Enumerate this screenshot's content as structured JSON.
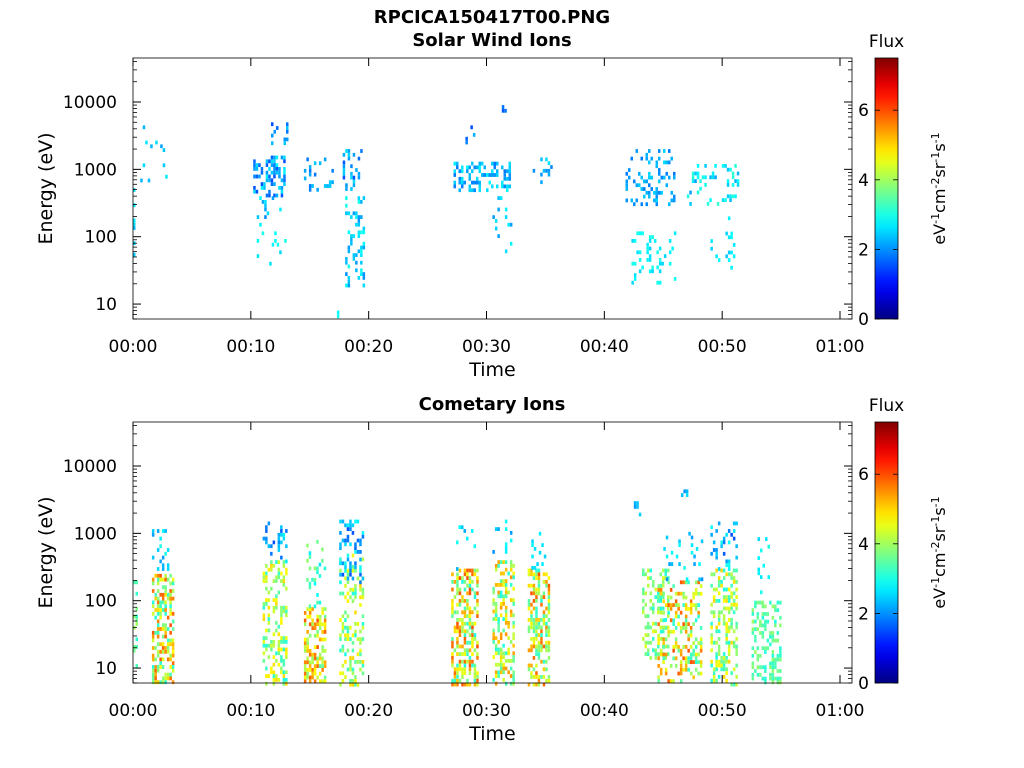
{
  "page": {
    "title_line1": "RPCICA150417T00.PNG",
    "title_line2": "Solar Wind Ions",
    "panel2_title": "Cometary Ions"
  },
  "chart_data": [
    {
      "type": "heatmap",
      "title": "Solar Wind Ions",
      "xlabel": "Time",
      "ylabel": "Energy (eV)",
      "x_unit": "minutes",
      "x_ticks": [
        "00:00",
        "00:10",
        "00:20",
        "00:30",
        "00:40",
        "00:50",
        "01:00"
      ],
      "xlim": [
        "00:00",
        "01:00"
      ],
      "y_scale": "log",
      "ylim": [
        6,
        45000
      ],
      "y_ticks": [
        "10",
        "100",
        "1000",
        "10000"
      ],
      "colorbar": {
        "title": "Flux",
        "label": "eV-1cm-2sr-1s-1",
        "ticks": [
          "0",
          "2",
          "4",
          "6"
        ],
        "range": [
          0,
          7.5
        ],
        "colormap": "jet"
      },
      "clusters": [
        {
          "t": [
            0.0,
            0.2
          ],
          "e": [
            40,
            600
          ],
          "flux": [
            2.2,
            2.8
          ],
          "density": 0.35
        },
        {
          "t": [
            0.4,
            3.0
          ],
          "e": [
            500,
            4500
          ],
          "flux": [
            2.0,
            3.0
          ],
          "density": 0.06
        },
        {
          "t": [
            10.2,
            12.9
          ],
          "e": [
            400,
            1600
          ],
          "flux": [
            1.5,
            2.8
          ],
          "density": 0.45
        },
        {
          "t": [
            10.5,
            13.0
          ],
          "e": [
            150,
            400
          ],
          "flux": [
            1.8,
            2.8
          ],
          "density": 0.1
        },
        {
          "t": [
            10.5,
            13.0
          ],
          "e": [
            40,
            120
          ],
          "flux": [
            2.5,
            3.0
          ],
          "density": 0.12
        },
        {
          "t": [
            11.5,
            13.0
          ],
          "e": [
            2500,
            5000
          ],
          "flux": [
            1.5,
            2.5
          ],
          "density": 0.12
        },
        {
          "t": [
            14.5,
            17.0
          ],
          "e": [
            500,
            1500
          ],
          "flux": [
            1.8,
            2.6
          ],
          "density": 0.15
        },
        {
          "t": [
            17.8,
            19.4
          ],
          "e": [
            500,
            2000
          ],
          "flux": [
            1.5,
            2.6
          ],
          "density": 0.3
        },
        {
          "t": [
            18.0,
            19.5
          ],
          "e": [
            20,
            400
          ],
          "flux": [
            2.0,
            3.0
          ],
          "density": 0.28
        },
        {
          "t": [
            17.3,
            17.5
          ],
          "e": [
            6,
            8
          ],
          "flux": [
            2.8,
            3.0
          ],
          "density": 0.8
        },
        {
          "t": [
            27.2,
            32.0
          ],
          "e": [
            500,
            1300
          ],
          "flux": [
            1.8,
            2.8
          ],
          "density": 0.4
        },
        {
          "t": [
            28.0,
            29.0
          ],
          "e": [
            2500,
            4500
          ],
          "flux": [
            1.5,
            2.5
          ],
          "density": 0.2
        },
        {
          "t": [
            30.5,
            32.0
          ],
          "e": [
            60,
            400
          ],
          "flux": [
            2.0,
            2.8
          ],
          "density": 0.08
        },
        {
          "t": [
            31.3,
            31.6
          ],
          "e": [
            7000,
            9000
          ],
          "flux": [
            1.6,
            2.0
          ],
          "density": 0.6
        },
        {
          "t": [
            33.5,
            35.6
          ],
          "e": [
            600,
            1500
          ],
          "flux": [
            1.8,
            2.6
          ],
          "density": 0.12
        },
        {
          "t": [
            41.8,
            46.0
          ],
          "e": [
            300,
            2000
          ],
          "flux": [
            1.8,
            2.6
          ],
          "density": 0.25
        },
        {
          "t": [
            42.3,
            46.2
          ],
          "e": [
            20,
            120
          ],
          "flux": [
            2.5,
            3.0
          ],
          "density": 0.16
        },
        {
          "t": [
            47.0,
            51.3
          ],
          "e": [
            300,
            1200
          ],
          "flux": [
            2.0,
            3.2
          ],
          "density": 0.2
        },
        {
          "t": [
            49.0,
            51.0
          ],
          "e": [
            30,
            200
          ],
          "flux": [
            2.4,
            3.0
          ],
          "density": 0.1
        },
        {
          "t": [
            51.8,
            52.0
          ],
          "e": [
            2500,
            3000
          ],
          "flux": [
            2.0,
            2.5
          ],
          "density": 0.5
        }
      ]
    },
    {
      "type": "heatmap",
      "title": "Cometary Ions",
      "xlabel": "Time",
      "ylabel": "Energy (eV)",
      "x_unit": "minutes",
      "x_ticks": [
        "00:00",
        "00:10",
        "00:20",
        "00:30",
        "00:40",
        "00:50",
        "01:00"
      ],
      "xlim": [
        "00:00",
        "01:00"
      ],
      "y_scale": "log",
      "ylim": [
        6,
        45000
      ],
      "y_ticks": [
        "10",
        "100",
        "1000",
        "10000"
      ],
      "colorbar": {
        "title": "Flux",
        "label": "eV-1cm-2sr-1s-1",
        "ticks": [
          "0",
          "2",
          "4",
          "6"
        ],
        "range": [
          0,
          7.5
        ],
        "colormap": "jet"
      },
      "clusters": [
        {
          "t": [
            0.0,
            0.4
          ],
          "e": [
            10,
            200
          ],
          "flux": [
            3.0,
            4.0
          ],
          "density": 0.3
        },
        {
          "t": [
            1.6,
            3.5
          ],
          "e": [
            6,
            250
          ],
          "flux": [
            3.0,
            6.0
          ],
          "density": 0.55
        },
        {
          "t": [
            1.6,
            3.0
          ],
          "e": [
            300,
            1500
          ],
          "flux": [
            2.0,
            3.0
          ],
          "density": 0.18
        },
        {
          "t": [
            11.0,
            13.0
          ],
          "e": [
            6,
            400
          ],
          "flux": [
            3.0,
            5.0
          ],
          "density": 0.35
        },
        {
          "t": [
            11.0,
            13.0
          ],
          "e": [
            400,
            1500
          ],
          "flux": [
            1.5,
            2.8
          ],
          "density": 0.25
        },
        {
          "t": [
            14.5,
            16.3
          ],
          "e": [
            6,
            80
          ],
          "flux": [
            3.5,
            6.0
          ],
          "density": 0.5
        },
        {
          "t": [
            14.7,
            16.2
          ],
          "e": [
            80,
            800
          ],
          "flux": [
            2.5,
            4.0
          ],
          "density": 0.18
        },
        {
          "t": [
            17.5,
            19.5
          ],
          "e": [
            6,
            500
          ],
          "flux": [
            3.0,
            5.0
          ],
          "density": 0.35
        },
        {
          "t": [
            17.5,
            19.5
          ],
          "e": [
            200,
            1600
          ],
          "flux": [
            1.5,
            3.0
          ],
          "density": 0.3
        },
        {
          "t": [
            27.0,
            29.3
          ],
          "e": [
            6,
            300
          ],
          "flux": [
            3.0,
            6.0
          ],
          "density": 0.5
        },
        {
          "t": [
            27.2,
            29.0
          ],
          "e": [
            300,
            1500
          ],
          "flux": [
            2.2,
            3.0
          ],
          "density": 0.15
        },
        {
          "t": [
            30.5,
            32.3
          ],
          "e": [
            6,
            400
          ],
          "flux": [
            3.0,
            5.5
          ],
          "density": 0.4
        },
        {
          "t": [
            30.5,
            32.3
          ],
          "e": [
            400,
            1600
          ],
          "flux": [
            2.0,
            3.0
          ],
          "density": 0.12
        },
        {
          "t": [
            33.5,
            35.3
          ],
          "e": [
            6,
            300
          ],
          "flux": [
            3.0,
            6.0
          ],
          "density": 0.5
        },
        {
          "t": [
            33.8,
            35.0
          ],
          "e": [
            300,
            1200
          ],
          "flux": [
            2.5,
            3.0
          ],
          "density": 0.2
        },
        {
          "t": [
            43.2,
            45.5
          ],
          "e": [
            15,
            300
          ],
          "flux": [
            3.0,
            4.5
          ],
          "density": 0.35
        },
        {
          "t": [
            44.5,
            48.3
          ],
          "e": [
            6,
            200
          ],
          "flux": [
            3.0,
            6.0
          ],
          "density": 0.4
        },
        {
          "t": [
            45.0,
            48.2
          ],
          "e": [
            200,
            1200
          ],
          "flux": [
            2.0,
            3.0
          ],
          "density": 0.15
        },
        {
          "t": [
            49.0,
            51.2
          ],
          "e": [
            6,
            300
          ],
          "flux": [
            3.0,
            5.0
          ],
          "density": 0.4
        },
        {
          "t": [
            49.0,
            51.2
          ],
          "e": [
            300,
            1500
          ],
          "flux": [
            1.5,
            3.0
          ],
          "density": 0.2
        },
        {
          "t": [
            52.5,
            55.0
          ],
          "e": [
            6,
            100
          ],
          "flux": [
            3.0,
            4.0
          ],
          "density": 0.45
        },
        {
          "t": [
            53.0,
            54.0
          ],
          "e": [
            100,
            1000
          ],
          "flux": [
            2.5,
            3.0
          ],
          "density": 0.15
        },
        {
          "t": [
            42.5,
            43.0
          ],
          "e": [
            2000,
            3000
          ],
          "flux": [
            2.0,
            2.6
          ],
          "density": 0.5
        },
        {
          "t": [
            46.5,
            47.0
          ],
          "e": [
            3500,
            4500
          ],
          "flux": [
            2.0,
            2.6
          ],
          "density": 0.5
        }
      ]
    }
  ]
}
